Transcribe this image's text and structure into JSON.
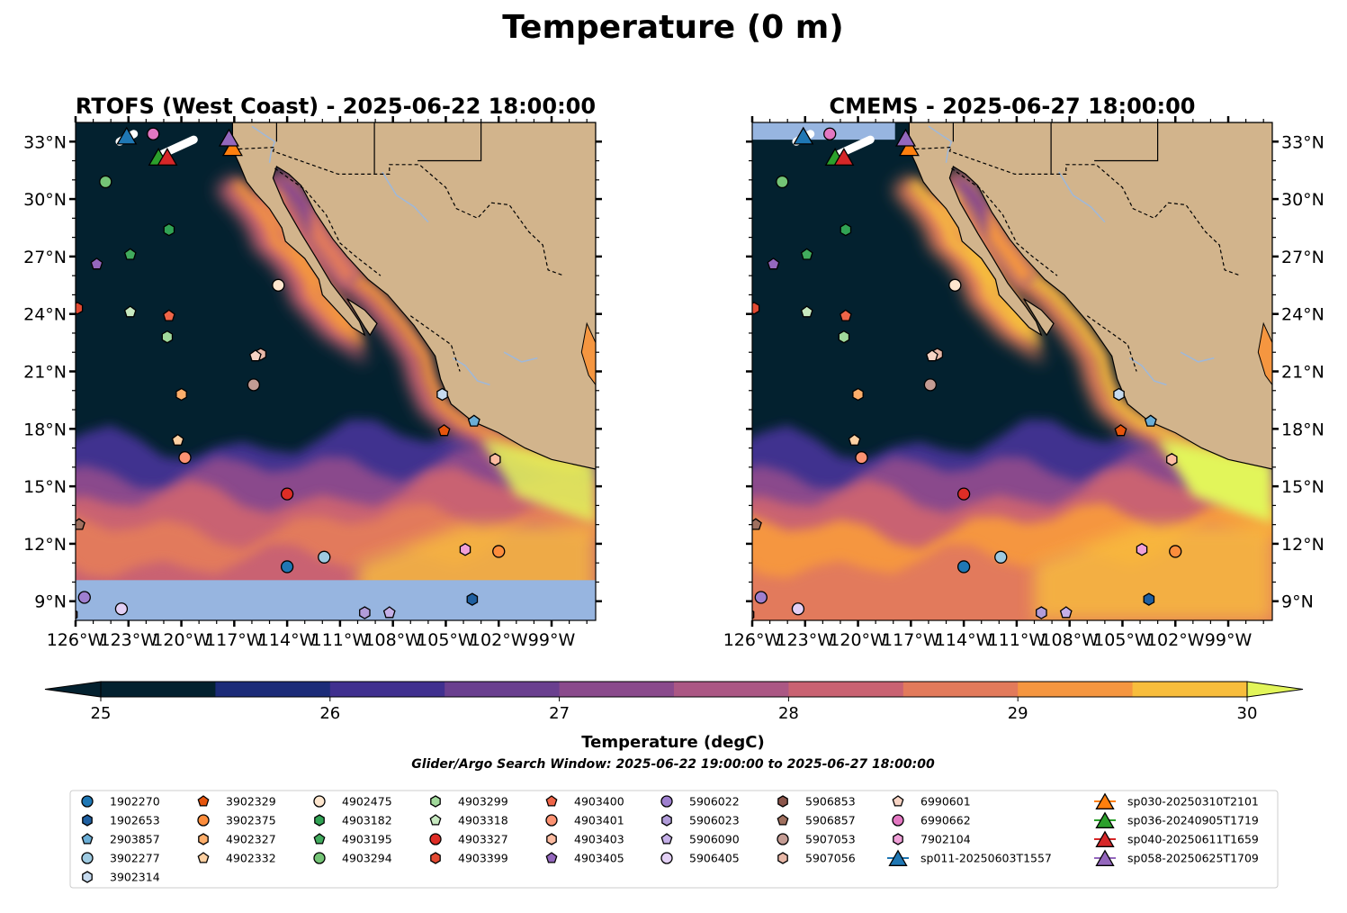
{
  "figure": {
    "title": "Temperature (0 m)",
    "note": "Glider/Argo Search Window: 2025-06-22 19:00:00 to 2025-06-27 18:00:00"
  },
  "colors": {
    "land": "#d2b48c",
    "nodata": "#97b5e0",
    "river": "#9fb8d9",
    "colormap": [
      "#03212f",
      "#1b2b78",
      "#40308f",
      "#6a3f8f",
      "#8a4a8c",
      "#ab5784",
      "#c96272",
      "#e27a5b",
      "#f59640",
      "#f8bd3c",
      "#e2f55a"
    ]
  },
  "chart_data": {
    "type": "map",
    "projection": "PlateCarree",
    "extent": {
      "lon": [
        -126,
        -96.5
      ],
      "lat": [
        8,
        34
      ]
    },
    "xticks": [
      -126,
      -123,
      -120,
      -117,
      -114,
      -111,
      -108,
      -105,
      -102,
      -99
    ],
    "yticks": [
      9,
      12,
      15,
      18,
      21,
      24,
      27,
      30,
      33
    ],
    "xticklabels": [
      "126°W",
      "123°W",
      "120°W",
      "117°W",
      "114°W",
      "111°W",
      "108°W",
      "105°W",
      "102°W",
      "99°W"
    ],
    "yticklabels": [
      "9°N",
      "12°N",
      "15°N",
      "18°N",
      "21°N",
      "24°N",
      "27°N",
      "30°N",
      "33°N"
    ],
    "panels": [
      {
        "title": "RTOFS (West Coast) - 2025-06-22 18:00:00",
        "model": "RTOFS",
        "missing_south_of": 10.1
      },
      {
        "title": "CMEMS - 2025-06-27 18:00:00",
        "model": "CMEMS",
        "missing_north_of": 33.1,
        "missing_west_of": -117.9
      }
    ],
    "colorbar": {
      "label": "Temperature (degC)",
      "min": 25,
      "max": 30,
      "step": 0.5,
      "ticks": [
        25,
        26,
        27,
        28,
        29,
        30
      ],
      "extend": "both"
    },
    "argo_floats": [
      {
        "id": "1902270",
        "lon": -114.0,
        "lat": 10.8,
        "marker": "circle",
        "color": "#1f77b4"
      },
      {
        "id": "1902653",
        "lon": -103.5,
        "lat": 9.1,
        "marker": "hexagon",
        "color": "#1f5fa0"
      },
      {
        "id": "2903857",
        "lon": -103.4,
        "lat": 18.4,
        "marker": "pentagon",
        "color": "#6baed6"
      },
      {
        "id": "3902277",
        "lon": -111.9,
        "lat": 11.3,
        "marker": "circle",
        "color": "#9ecae1"
      },
      {
        "id": "3902314",
        "lon": -105.2,
        "lat": 19.8,
        "marker": "hexagon",
        "color": "#c6dbef"
      },
      {
        "id": "3902329",
        "lon": -105.1,
        "lat": 17.9,
        "marker": "pentagon",
        "color": "#e6550d"
      },
      {
        "id": "3902375",
        "lon": -102.0,
        "lat": 11.6,
        "marker": "circle",
        "color": "#fd8d3c"
      },
      {
        "id": "4902327",
        "lon": -120.0,
        "lat": 19.8,
        "marker": "hexagon",
        "color": "#fdae6b"
      },
      {
        "id": "4902332",
        "lon": -120.2,
        "lat": 17.4,
        "marker": "pentagon",
        "color": "#fdd0a2"
      },
      {
        "id": "4902475",
        "lon": -114.5,
        "lat": 25.5,
        "marker": "circle",
        "color": "#fee6ce"
      },
      {
        "id": "4903182",
        "lon": -120.7,
        "lat": 28.4,
        "marker": "hexagon",
        "color": "#31a354"
      },
      {
        "id": "4903195",
        "lon": -122.9,
        "lat": 27.1,
        "marker": "pentagon",
        "color": "#41ab5d"
      },
      {
        "id": "4903294",
        "lon": -124.3,
        "lat": 30.9,
        "marker": "circle",
        "color": "#74c476"
      },
      {
        "id": "4903299",
        "lon": -120.8,
        "lat": 22.8,
        "marker": "hexagon",
        "color": "#a1d99b"
      },
      {
        "id": "4903318",
        "lon": -122.9,
        "lat": 24.1,
        "marker": "pentagon",
        "color": "#c7e9c0"
      },
      {
        "id": "4903327",
        "lon": -114.0,
        "lat": 14.6,
        "marker": "circle",
        "color": "#de2d26"
      },
      {
        "id": "4903399",
        "lon": -125.9,
        "lat": 24.3,
        "marker": "hexagon",
        "color": "#e34a33"
      },
      {
        "id": "4903400",
        "lon": -120.7,
        "lat": 23.9,
        "marker": "pentagon",
        "color": "#ef6548"
      },
      {
        "id": "4903401",
        "lon": -119.8,
        "lat": 16.5,
        "marker": "circle",
        "color": "#fc9272"
      },
      {
        "id": "4903403",
        "lon": -102.2,
        "lat": 16.4,
        "marker": "hexagon",
        "color": "#fcbba1"
      },
      {
        "id": "4903405",
        "lon": -124.8,
        "lat": 26.6,
        "marker": "pentagon",
        "color": "#9467bd"
      },
      {
        "id": "5906022",
        "lon": -125.5,
        "lat": 9.2,
        "marker": "circle",
        "color": "#9e7fcf"
      },
      {
        "id": "5906023",
        "lon": -109.6,
        "lat": 8.4,
        "marker": "hexagon",
        "color": "#b19cd9"
      },
      {
        "id": "5906090",
        "lon": -108.2,
        "lat": 8.4,
        "marker": "pentagon",
        "color": "#c5b0e8"
      },
      {
        "id": "5906405",
        "lon": -123.4,
        "lat": 8.6,
        "marker": "circle",
        "color": "#e3d0f5"
      },
      {
        "id": "5906853",
        "lon": -126.2,
        "lat": 8.3,
        "marker": "hexagon",
        "color": "#8c564b"
      },
      {
        "id": "5906857",
        "lon": -125.8,
        "lat": 13.0,
        "marker": "pentagon",
        "color": "#a0705f"
      },
      {
        "id": "5907053",
        "lon": -115.9,
        "lat": 20.3,
        "marker": "circle",
        "color": "#c49c94"
      },
      {
        "id": "5907056",
        "lon": -115.5,
        "lat": 21.9,
        "marker": "hexagon",
        "color": "#e8b8a8"
      },
      {
        "id": "6990601",
        "lon": -115.8,
        "lat": 21.8,
        "marker": "pentagon",
        "color": "#f7d4c4"
      },
      {
        "id": "6990662",
        "lon": -121.6,
        "lat": 33.4,
        "marker": "circle",
        "color": "#e377c2"
      },
      {
        "id": "7902104",
        "lon": -103.9,
        "lat": 11.7,
        "marker": "hexagon",
        "color": "#f0a0d8"
      }
    ],
    "gliders": [
      {
        "id": "sp011-20250603T1557",
        "lon": -123.1,
        "lat": 33.3,
        "color": "#1f77b4"
      },
      {
        "id": "sp030-20250310T2101",
        "lon": -117.1,
        "lat": 32.7,
        "color": "#ff7f0e"
      },
      {
        "id": "sp036-20240905T1719",
        "lon": -121.3,
        "lat": 32.2,
        "color": "#2ca02c"
      },
      {
        "id": "sp040-20250611T1659",
        "lon": -120.8,
        "lat": 32.2,
        "color": "#d62728"
      },
      {
        "id": "sp058-20250625T1709",
        "lon": -117.3,
        "lat": 33.2,
        "color": "#9467bd"
      }
    ]
  },
  "legend": {
    "entries": [
      {
        "label": "1902270",
        "marker": "circle",
        "color": "#1f77b4"
      },
      {
        "label": "1902653",
        "marker": "hexagon",
        "color": "#1f5fa0"
      },
      {
        "label": "2903857",
        "marker": "pentagon",
        "color": "#6baed6"
      },
      {
        "label": "3902277",
        "marker": "circle",
        "color": "#9ecae1"
      },
      {
        "label": "3902314",
        "marker": "hexagon",
        "color": "#c6dbef"
      },
      {
        "label": "3902329",
        "marker": "pentagon",
        "color": "#e6550d"
      },
      {
        "label": "3902375",
        "marker": "circle",
        "color": "#fd8d3c"
      },
      {
        "label": "4902327",
        "marker": "hexagon",
        "color": "#fdae6b"
      },
      {
        "label": "4902332",
        "marker": "pentagon",
        "color": "#fdd0a2"
      },
      {
        "label": "4902475",
        "marker": "circle",
        "color": "#fee6ce"
      },
      {
        "label": "4903182",
        "marker": "hexagon",
        "color": "#31a354"
      },
      {
        "label": "4903195",
        "marker": "pentagon",
        "color": "#41ab5d"
      },
      {
        "label": "4903294",
        "marker": "circle",
        "color": "#74c476"
      },
      {
        "label": "4903299",
        "marker": "hexagon",
        "color": "#a1d99b"
      },
      {
        "label": "4903318",
        "marker": "pentagon",
        "color": "#c7e9c0"
      },
      {
        "label": "4903327",
        "marker": "circle",
        "color": "#de2d26"
      },
      {
        "label": "4903399",
        "marker": "hexagon",
        "color": "#e34a33"
      },
      {
        "label": "4903400",
        "marker": "pentagon",
        "color": "#ef6548"
      },
      {
        "label": "4903401",
        "marker": "circle",
        "color": "#fc9272"
      },
      {
        "label": "4903403",
        "marker": "hexagon",
        "color": "#fcbba1"
      },
      {
        "label": "4903405",
        "marker": "pentagon",
        "color": "#9467bd"
      },
      {
        "label": "5906022",
        "marker": "circle",
        "color": "#9e7fcf"
      },
      {
        "label": "5906023",
        "marker": "hexagon",
        "color": "#b19cd9"
      },
      {
        "label": "5906090",
        "marker": "pentagon",
        "color": "#c5b0e8"
      },
      {
        "label": "5906405",
        "marker": "circle",
        "color": "#e3d0f5"
      },
      {
        "label": "5906853",
        "marker": "hexagon",
        "color": "#8c564b"
      },
      {
        "label": "5906857",
        "marker": "pentagon",
        "color": "#a0705f"
      },
      {
        "label": "5907053",
        "marker": "circle",
        "color": "#c49c94"
      },
      {
        "label": "5907056",
        "marker": "hexagon",
        "color": "#e8b8a8"
      },
      {
        "label": "6990601",
        "marker": "pentagon",
        "color": "#f7d4c4"
      },
      {
        "label": "6990662",
        "marker": "circle",
        "color": "#e377c2"
      },
      {
        "label": "7902104",
        "marker": "hexagon",
        "color": "#f0a0d8"
      },
      {
        "label": "sp011-20250603T1557",
        "marker": "triangle",
        "color": "#1f77b4"
      },
      {
        "label": "sp030-20250310T2101",
        "marker": "triangle",
        "color": "#ff7f0e"
      },
      {
        "label": "sp036-20240905T1719",
        "marker": "triangle",
        "color": "#2ca02c"
      },
      {
        "label": "sp040-20250611T1659",
        "marker": "triangle",
        "color": "#d62728"
      },
      {
        "label": "sp058-20250625T1709",
        "marker": "triangle",
        "color": "#9467bd"
      }
    ]
  }
}
